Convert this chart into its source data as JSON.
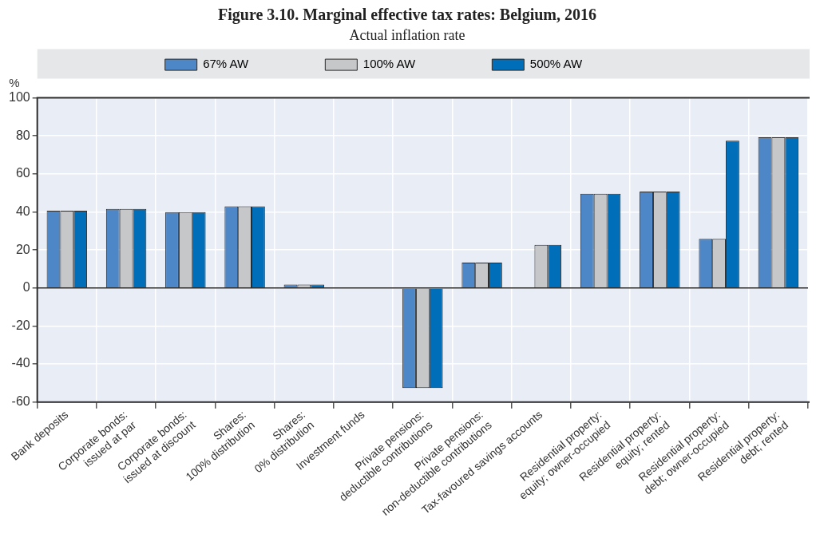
{
  "chart_data": {
    "type": "bar",
    "title": "Figure 3.10. Marginal effective tax rates: Belgium, 2016",
    "subtitle": "Actual inflation rate",
    "ylabel": "%",
    "categories": [
      "Bank deposits",
      "Corporate bonds: issued at par",
      "Corporate bonds: issued at discount",
      "Shares: 100% distribution",
      "Shares: 0% distribution",
      "Investment funds",
      "Private pensions: deductible contributions",
      "Private pensions: non-deductible contributions",
      "Tax-favoured savings accounts",
      "Residential property: equity; owner-occupied",
      "Residential property: equity; rented",
      "Residential property: debt; owner-occupied",
      "Residential property: debt; rented"
    ],
    "series": [
      {
        "name": "67% AW",
        "color": "#4e87c7",
        "values": [
          40.6,
          41.6,
          39.9,
          42.9,
          1.8,
          0,
          -52.7,
          13.3,
          0,
          49.6,
          50.7,
          25.8,
          79.3
        ]
      },
      {
        "name": "100% AW",
        "color": "#c6c7c9",
        "values": [
          40.6,
          41.6,
          39.9,
          42.9,
          1.8,
          0,
          -52.7,
          13.3,
          22.7,
          49.6,
          50.7,
          25.8,
          79.3
        ]
      },
      {
        "name": "500% AW",
        "color": "#006eb8",
        "values": [
          40.6,
          41.6,
          39.9,
          42.9,
          1.8,
          0,
          -52.7,
          13.3,
          22.7,
          49.6,
          50.7,
          77.5,
          79.3
        ]
      }
    ],
    "ylim": [
      -60,
      100
    ],
    "yticks": [
      -60,
      -40,
      -20,
      0,
      20,
      40,
      60,
      80,
      100
    ],
    "grid": true,
    "legend": "top"
  }
}
